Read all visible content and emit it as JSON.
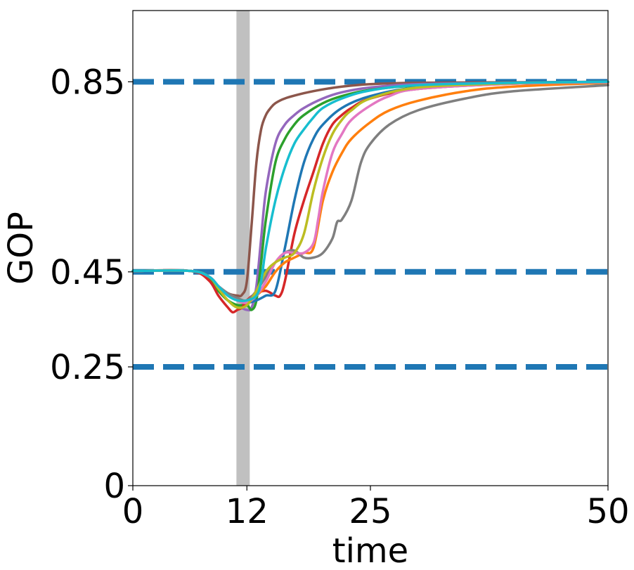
{
  "chart_data": {
    "type": "line",
    "xlabel": "time",
    "ylabel": "GOP",
    "xlim": [
      0,
      50
    ],
    "ylim": [
      0,
      1.0
    ],
    "xticks": [
      {
        "value": 0,
        "label": "0"
      },
      {
        "value": 12,
        "label": "12"
      },
      {
        "value": 25,
        "label": "25"
      },
      {
        "value": 50,
        "label": "50"
      }
    ],
    "yticks": [
      {
        "value": 0,
        "label": "0"
      },
      {
        "value": 0.25,
        "label": "0.25"
      },
      {
        "value": 0.45,
        "label": "0.45"
      },
      {
        "value": 0.85,
        "label": "0.85"
      }
    ],
    "reference_lines": [
      {
        "value": 0.85,
        "color": "#1f77b4",
        "style": "dashed"
      },
      {
        "value": 0.45,
        "color": "#1f77b4",
        "style": "dashed"
      },
      {
        "value": 0.25,
        "color": "#1f77b4",
        "style": "dashed"
      }
    ],
    "shaded_band": {
      "x_start": 10.9,
      "x_end": 12.3,
      "color": "#c0c0c0"
    },
    "grid": false,
    "series": [
      {
        "color": "#8c564b",
        "x": [
          0,
          6,
          8,
          9,
          10,
          11,
          11.5,
          12,
          12.5,
          13,
          13.5,
          14,
          14.5,
          15,
          16,
          18,
          20,
          22,
          25,
          30,
          40,
          50
        ],
        "y": [
          0.452,
          0.452,
          0.44,
          0.42,
          0.405,
          0.4,
          0.402,
          0.43,
          0.55,
          0.68,
          0.75,
          0.78,
          0.795,
          0.805,
          0.815,
          0.826,
          0.834,
          0.84,
          0.845,
          0.848,
          0.849,
          0.85
        ]
      },
      {
        "color": "#9467bd",
        "x": [
          0,
          6,
          8,
          9,
          10,
          11,
          12,
          12.5,
          13,
          13.5,
          14,
          15,
          16,
          17,
          18,
          20,
          22,
          25,
          30,
          40,
          50
        ],
        "y": [
          0.452,
          0.452,
          0.438,
          0.41,
          0.39,
          0.378,
          0.37,
          0.375,
          0.42,
          0.52,
          0.62,
          0.72,
          0.76,
          0.78,
          0.795,
          0.815,
          0.828,
          0.838,
          0.845,
          0.848,
          0.85
        ]
      },
      {
        "color": "#2ca02c",
        "x": [
          0,
          6,
          8,
          9,
          10,
          11,
          12,
          12.5,
          13,
          13.5,
          14,
          15,
          16,
          17,
          18,
          20,
          22,
          25,
          30,
          40,
          50
        ],
        "y": [
          0.452,
          0.452,
          0.435,
          0.41,
          0.39,
          0.38,
          0.38,
          0.37,
          0.39,
          0.47,
          0.56,
          0.68,
          0.73,
          0.76,
          0.78,
          0.805,
          0.82,
          0.833,
          0.842,
          0.847,
          0.849
        ]
      },
      {
        "color": "#d62728",
        "x": [
          0,
          6,
          8,
          9,
          10,
          10.5,
          11,
          11.5,
          12,
          13,
          14,
          15,
          15.5,
          16,
          17,
          18,
          19,
          20,
          21,
          22,
          23,
          25,
          30,
          40,
          50
        ],
        "y": [
          0.452,
          0.452,
          0.432,
          0.4,
          0.375,
          0.365,
          0.37,
          0.375,
          0.39,
          0.405,
          0.41,
          0.4,
          0.4,
          0.43,
          0.53,
          0.6,
          0.66,
          0.72,
          0.76,
          0.78,
          0.795,
          0.815,
          0.835,
          0.846,
          0.849
        ]
      },
      {
        "color": "#1f77b4",
        "x": [
          0,
          6,
          8,
          9,
          10,
          11,
          12,
          13,
          14,
          15,
          16,
          17,
          18,
          19,
          20,
          22,
          25,
          30,
          40,
          50
        ],
        "y": [
          0.452,
          0.452,
          0.44,
          0.42,
          0.4,
          0.39,
          0.385,
          0.39,
          0.4,
          0.41,
          0.5,
          0.6,
          0.68,
          0.73,
          0.76,
          0.795,
          0.82,
          0.838,
          0.847,
          0.85
        ]
      },
      {
        "color": "#ff7f0e",
        "x": [
          0,
          6,
          8,
          9,
          10,
          11,
          12,
          13,
          14,
          15,
          16,
          17,
          18,
          19,
          20,
          21,
          22,
          23,
          25,
          27,
          30,
          35,
          40,
          50
        ],
        "y": [
          0.452,
          0.452,
          0.44,
          0.42,
          0.4,
          0.39,
          0.385,
          0.4,
          0.42,
          0.45,
          0.47,
          0.48,
          0.49,
          0.5,
          0.6,
          0.66,
          0.7,
          0.73,
          0.765,
          0.79,
          0.81,
          0.83,
          0.84,
          0.848
        ]
      },
      {
        "color": "#7f7f7f",
        "x": [
          0,
          6,
          8,
          9,
          10,
          11,
          12,
          13,
          14,
          15,
          16,
          17,
          18,
          19,
          20,
          21,
          21.5,
          22,
          23,
          24,
          25,
          27,
          30,
          35,
          40,
          50
        ],
        "y": [
          0.452,
          0.452,
          0.44,
          0.42,
          0.405,
          0.395,
          0.39,
          0.41,
          0.44,
          0.47,
          0.49,
          0.495,
          0.48,
          0.48,
          0.49,
          0.52,
          0.555,
          0.56,
          0.6,
          0.68,
          0.72,
          0.76,
          0.79,
          0.815,
          0.83,
          0.843
        ]
      },
      {
        "color": "#e377c2",
        "x": [
          0,
          6,
          8,
          9,
          10,
          11,
          12,
          13,
          14,
          15,
          16,
          17,
          18,
          19,
          19.5,
          20,
          21,
          22,
          23,
          25,
          27,
          30,
          40,
          50
        ],
        "y": [
          0.452,
          0.452,
          0.44,
          0.42,
          0.4,
          0.39,
          0.385,
          0.4,
          0.43,
          0.47,
          0.49,
          0.49,
          0.49,
          0.51,
          0.56,
          0.62,
          0.7,
          0.74,
          0.77,
          0.8,
          0.82,
          0.835,
          0.846,
          0.849
        ]
      },
      {
        "color": "#bcbd22",
        "x": [
          0,
          6,
          8,
          9,
          10,
          11,
          12,
          13,
          14,
          15,
          16,
          17,
          18,
          19,
          20,
          21,
          22,
          23,
          25,
          30,
          40,
          50
        ],
        "y": [
          0.452,
          0.452,
          0.44,
          0.415,
          0.39,
          0.375,
          0.38,
          0.41,
          0.45,
          0.47,
          0.48,
          0.49,
          0.53,
          0.62,
          0.69,
          0.74,
          0.77,
          0.79,
          0.815,
          0.838,
          0.847,
          0.85
        ]
      },
      {
        "color": "#17becf",
        "x": [
          0,
          6,
          8,
          9,
          10,
          11,
          12,
          13,
          13.5,
          14,
          15,
          16,
          17,
          18,
          19,
          20,
          22,
          25,
          30,
          40,
          50
        ],
        "y": [
          0.452,
          0.452,
          0.44,
          0.42,
          0.4,
          0.39,
          0.39,
          0.4,
          0.43,
          0.5,
          0.6,
          0.67,
          0.72,
          0.75,
          0.775,
          0.795,
          0.815,
          0.832,
          0.843,
          0.848,
          0.85
        ]
      }
    ]
  }
}
